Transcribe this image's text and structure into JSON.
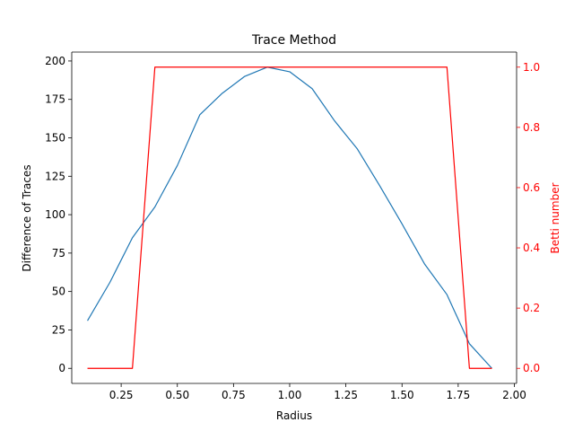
{
  "chart_data": {
    "type": "line",
    "title": "Trace Method",
    "xlabel": "Radius",
    "ylabel_left": "Difference of Traces",
    "ylabel_right": "Betti number",
    "xlim": [
      0.03,
      2.01
    ],
    "ylim_left": [
      -9.8,
      205.8
    ],
    "ylim_right": [
      -0.05,
      1.05
    ],
    "x_ticks": [
      0.25,
      0.5,
      0.75,
      1.0,
      1.25,
      1.5,
      1.75,
      2.0
    ],
    "x_tick_labels": [
      "0.25",
      "0.50",
      "0.75",
      "1.00",
      "1.25",
      "1.50",
      "1.75",
      "2.00"
    ],
    "y_left_ticks": [
      0,
      25,
      50,
      75,
      100,
      125,
      150,
      175,
      200
    ],
    "y_left_tick_labels": [
      "0",
      "25",
      "50",
      "75",
      "100",
      "125",
      "150",
      "175",
      "200"
    ],
    "y_right_ticks": [
      0.0,
      0.2,
      0.4,
      0.6,
      0.8,
      1.0
    ],
    "y_right_tick_labels": [
      "0.0",
      "0.2",
      "0.4",
      "0.6",
      "0.8",
      "1.0"
    ],
    "grid": false,
    "colors": {
      "trace": "#1f77b4",
      "betti": "#ff0000",
      "axis": "#000000",
      "right_axis": "#ff0000"
    },
    "series": [
      {
        "axis": "left",
        "color": "#1f77b4",
        "x": [
          0.1,
          0.2,
          0.3,
          0.4,
          0.5,
          0.6,
          0.7,
          0.8,
          0.9,
          1.0,
          1.1,
          1.2,
          1.3,
          1.4,
          1.5,
          1.6,
          1.7,
          1.8,
          1.9
        ],
        "y": [
          31,
          56,
          85,
          105,
          132,
          165,
          179,
          190,
          196,
          193,
          182,
          161,
          143,
          119,
          94,
          68,
          48,
          16,
          0
        ]
      },
      {
        "axis": "right",
        "color": "#ff0000",
        "x": [
          0.1,
          0.2,
          0.3,
          0.4,
          0.5,
          0.6,
          0.7,
          0.8,
          0.9,
          1.0,
          1.1,
          1.2,
          1.3,
          1.4,
          1.5,
          1.6,
          1.7,
          1.8,
          1.9
        ],
        "y": [
          0,
          0,
          0,
          1,
          1,
          1,
          1,
          1,
          1,
          1,
          1,
          1,
          1,
          1,
          1,
          1,
          1,
          0,
          0
        ]
      }
    ]
  }
}
